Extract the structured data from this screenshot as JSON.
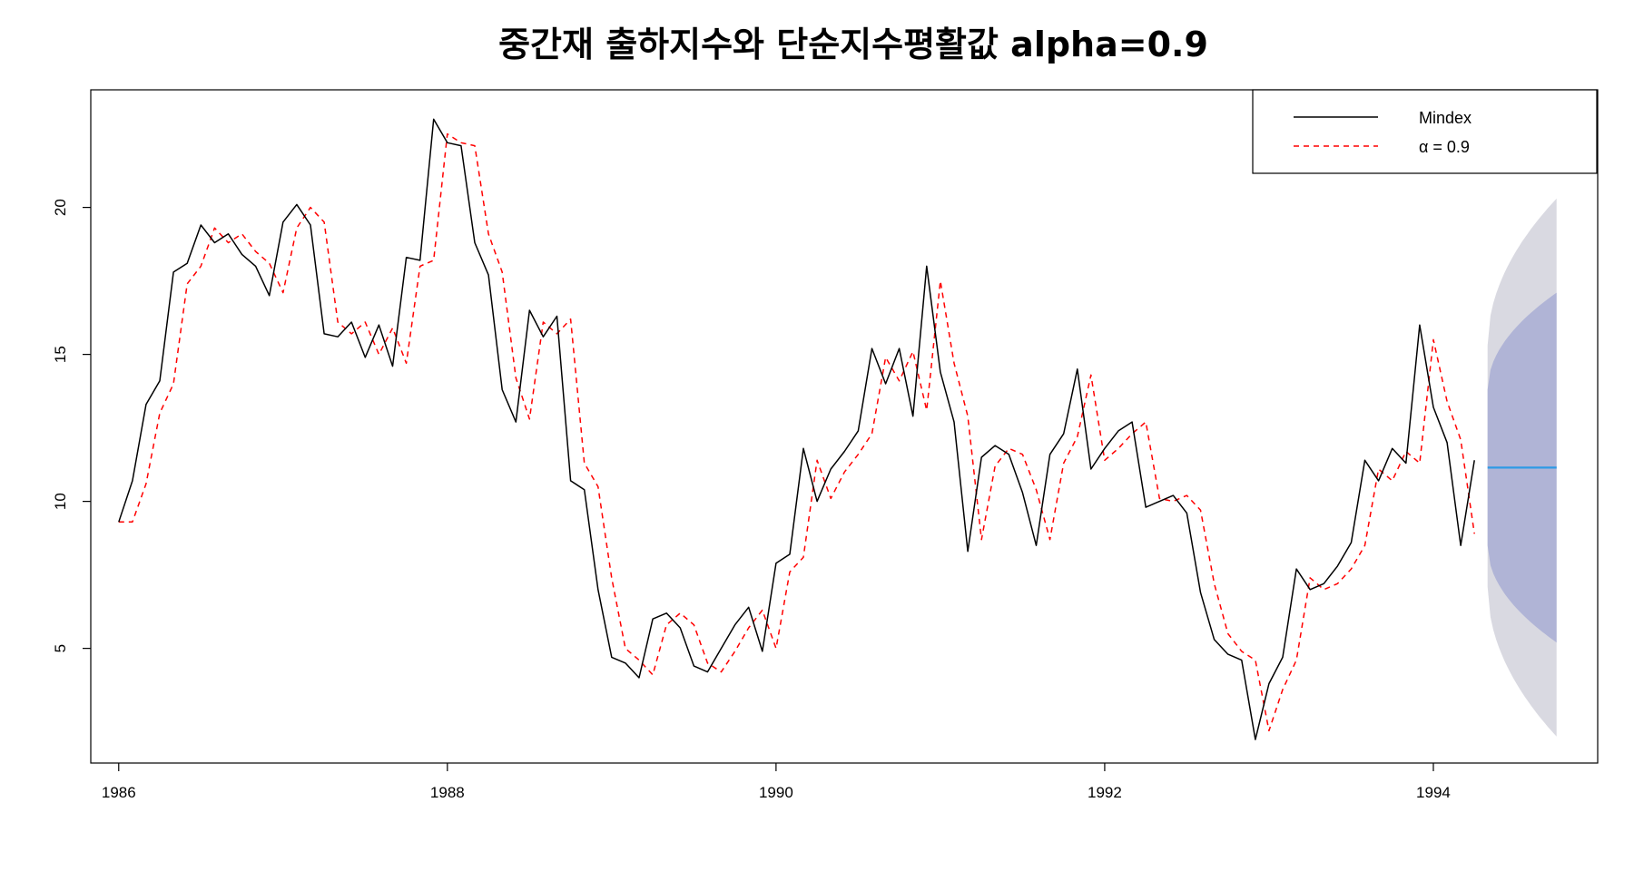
{
  "chart_data": {
    "type": "line",
    "title": "중간재 출하지수와 단순지수평활값 alpha=0.9",
    "xlabel": "",
    "ylabel": "",
    "xlim": [
      1985.83,
      1995.0
    ],
    "ylim": [
      1.1,
      24.0
    ],
    "x_ticks": [
      1986,
      1988,
      1990,
      1992,
      1994
    ],
    "x_tick_labels": [
      "1986",
      "1988",
      "1990",
      "1992",
      "1994"
    ],
    "y_ticks": [
      5,
      10,
      15,
      20
    ],
    "y_tick_labels": [
      "5",
      "10",
      "15",
      "20"
    ],
    "grid": false,
    "legend_position": "top-right",
    "x_start": 1986.0,
    "x_step": 0.0833333,
    "series": [
      {
        "name": "Mindex",
        "color": "#000000",
        "style": "solid",
        "values": [
          9.3,
          10.7,
          13.3,
          14.1,
          17.8,
          18.1,
          19.4,
          18.8,
          19.1,
          18.4,
          18.0,
          17.0,
          19.5,
          20.1,
          19.4,
          15.7,
          15.6,
          16.1,
          14.9,
          16.0,
          14.6,
          18.3,
          18.2,
          23.0,
          22.2,
          22.1,
          18.8,
          17.7,
          13.8,
          12.7,
          16.5,
          15.6,
          16.3,
          10.7,
          10.4,
          7.0,
          4.7,
          4.5,
          4.0,
          6.0,
          6.2,
          5.7,
          4.4,
          4.2,
          5.0,
          5.8,
          6.4,
          4.9,
          7.9,
          8.2,
          11.8,
          10.0,
          11.1,
          11.7,
          12.4,
          15.2,
          14.0,
          15.2,
          12.9,
          18.0,
          14.4,
          12.7,
          8.3,
          11.5,
          11.9,
          11.6,
          10.3,
          8.5,
          11.6,
          12.3,
          14.5,
          11.1,
          11.8,
          12.4,
          12.7,
          9.8,
          10.0,
          10.2,
          9.6,
          6.9,
          5.3,
          4.8,
          4.6,
          1.9,
          3.8,
          4.7,
          7.7,
          7.0,
          7.2,
          7.8,
          8.6,
          11.4,
          10.7,
          11.8,
          11.3,
          16.0,
          13.2,
          12.0,
          8.5,
          11.4
        ]
      },
      {
        "name": "α = 0.9",
        "color": "#ff0000",
        "style": "dashed",
        "values": [
          9.3,
          9.3,
          10.6,
          13.0,
          14.0,
          17.4,
          18.0,
          19.3,
          18.8,
          19.1,
          18.5,
          18.1,
          17.1,
          19.3,
          20.0,
          19.5,
          16.1,
          15.7,
          16.1,
          15.0,
          15.9,
          14.7,
          18.0,
          18.2,
          22.5,
          22.2,
          22.1,
          19.1,
          17.8,
          14.2,
          12.8,
          16.1,
          15.7,
          16.2,
          11.3,
          10.5,
          7.4,
          5.0,
          4.6,
          4.1,
          5.8,
          6.2,
          5.8,
          4.5,
          4.2,
          4.9,
          5.7,
          6.3,
          5.0,
          7.6,
          8.1,
          11.4,
          10.1,
          11.0,
          11.6,
          12.3,
          14.9,
          14.1,
          15.1,
          13.1,
          17.5,
          14.7,
          12.9,
          8.7,
          11.2,
          11.8,
          11.6,
          10.4,
          8.7,
          11.3,
          12.2,
          14.3,
          11.4,
          11.8,
          12.3,
          12.7,
          10.1,
          10.0,
          10.2,
          9.7,
          7.2,
          5.5,
          4.9,
          4.6,
          2.2,
          3.6,
          4.6,
          7.4,
          7.0,
          7.2,
          7.7,
          8.5,
          11.1,
          10.7,
          11.7,
          11.3,
          15.5,
          13.4,
          12.1,
          8.9
        ]
      }
    ],
    "forecast": {
      "start_x": 1994.33,
      "end_x": 1994.75,
      "point": 11.15,
      "line_color": "#2e9ae5",
      "inner_band_color": "#b0b4d6",
      "outer_band_color": "#d9d9e1",
      "inner_lower": [
        8.5,
        5.2
      ],
      "inner_upper": [
        13.8,
        17.1
      ],
      "outer_lower": [
        7.1,
        2.0
      ],
      "outer_upper": [
        15.3,
        20.3
      ]
    }
  }
}
